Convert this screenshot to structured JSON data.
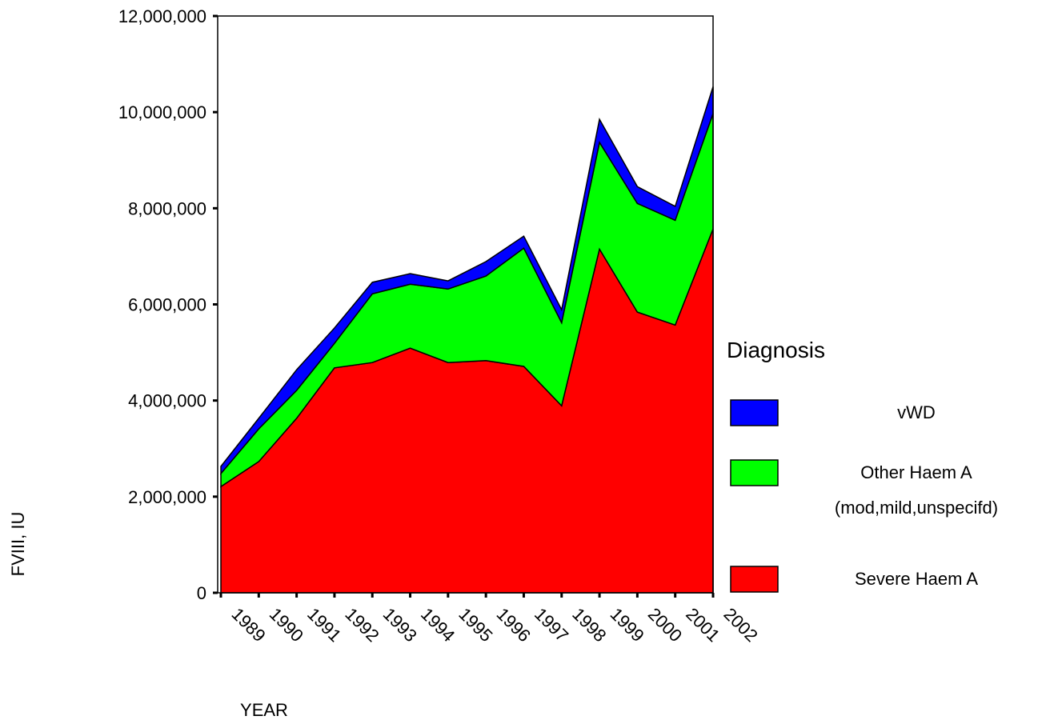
{
  "chart_data": {
    "type": "stacked_area",
    "x_label": "YEAR",
    "y_label": "FVIII, IU",
    "legend_title": "Diagnosis",
    "categories": [
      "1989",
      "1990",
      "1991",
      "1992",
      "1993",
      "1994",
      "1995",
      "1996",
      "1997",
      "1998",
      "1999",
      "2000",
      "2001",
      "2002"
    ],
    "series": [
      {
        "name": "Severe Haem A",
        "color": "#ff0000",
        "values": [
          2210000,
          2730000,
          3630000,
          4680000,
          4790000,
          5090000,
          4790000,
          4830000,
          4710000,
          3890000,
          7150000,
          5840000,
          5570000,
          7570000
        ]
      },
      {
        "name": "Other Haem A (mod,mild,unspecifd)",
        "color": "#00ff00",
        "values": [
          270000,
          680000,
          580000,
          510000,
          1430000,
          1330000,
          1530000,
          1760000,
          2460000,
          1730000,
          2220000,
          2260000,
          2180000,
          2400000
        ]
      },
      {
        "name": "vWD",
        "color": "#0000ff",
        "values": [
          150000,
          220000,
          430000,
          320000,
          240000,
          220000,
          170000,
          300000,
          250000,
          270000,
          480000,
          350000,
          290000,
          560000
        ]
      }
    ],
    "ylim": [
      0,
      12000000
    ],
    "yticks": [
      0,
      {
        "value": 2000000,
        "label": "2,000,000"
      },
      {
        "value": 4000000,
        "label": "4,000,000"
      },
      {
        "value": 6000000,
        "label": "6,000,000"
      },
      {
        "value": 8000000,
        "label": "8,000,000"
      },
      {
        "value": 10000000,
        "label": "10,000,000"
      },
      {
        "value": 12000000,
        "label": "12,000,000"
      }
    ]
  }
}
